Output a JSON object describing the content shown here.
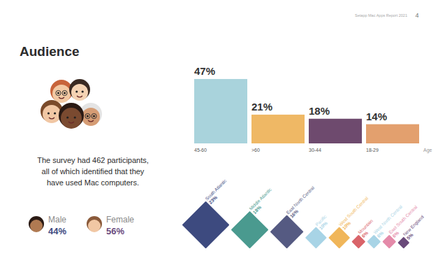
{
  "header": {
    "report": "Setapp Mac Apps Report 2021",
    "page": "4"
  },
  "title": "Audience",
  "description": [
    "The survey had 462 participants,",
    "all of which identified that they",
    "have used Mac computers."
  ],
  "gender": [
    {
      "label": "Male",
      "value": "44%",
      "color": "#3d4a7f"
    },
    {
      "label": "Female",
      "value": "56%",
      "color": "#6b4c7e"
    }
  ],
  "chart_data": [
    {
      "type": "bar",
      "categories": [
        "45-60",
        ">60",
        "30-44",
        "18-29"
      ],
      "values": [
        47,
        21,
        18,
        14
      ],
      "value_labels": [
        "47%",
        "21%",
        "18%",
        "14%"
      ],
      "colors": [
        "#a9d3dc",
        "#efb865",
        "#6e4a6e",
        "#e3a06e"
      ],
      "x_label": "Age",
      "ylim": [
        0,
        48
      ],
      "data_labels": true,
      "tick_labels": "x"
    },
    {
      "type": "diamond",
      "categories": [
        "South Atlantic",
        "Middle Atlantic",
        "East North Central",
        "Pacific",
        "West South Central",
        "Mountain",
        "West North Central",
        "East South Central",
        "New England"
      ],
      "values": [
        23,
        18,
        16,
        10,
        10,
        6,
        6,
        6,
        5
      ],
      "value_labels": [
        "23%",
        "18%",
        "16%",
        "10%",
        "10%",
        "6%",
        "6%",
        "6%",
        "5%"
      ],
      "colors": [
        "#3d4a7f",
        "#4a9a8f",
        "#555a82",
        "#a8d4e6",
        "#f0b65a",
        "#d9646a",
        "#a8d4e6",
        "#e48aa9",
        "#6a4a7a"
      ],
      "data_labels": true
    }
  ]
}
